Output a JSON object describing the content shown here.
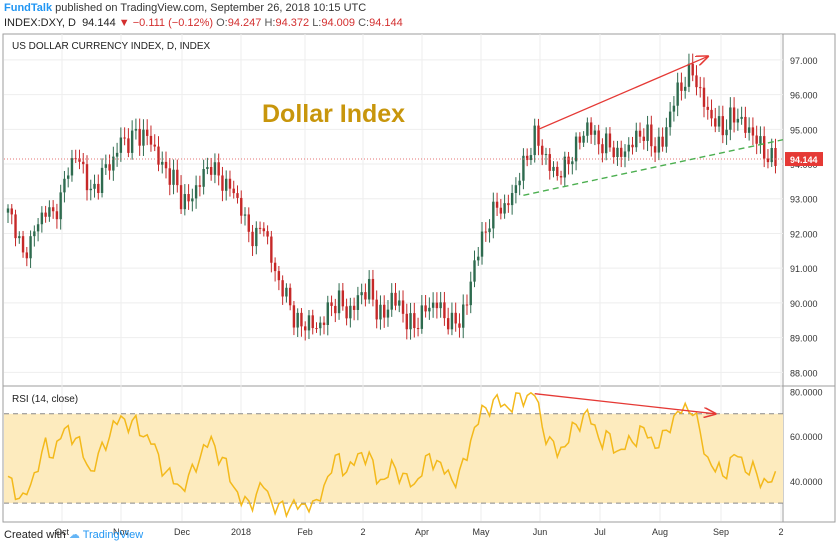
{
  "header": {
    "publisher": "FundTalk",
    "published_text": "published on TradingView.com, September 26, 2018 10:15 UTC",
    "symbol": "INDEX:DXY, D",
    "last": "94.144",
    "change": "−0.111 (−0.12%)",
    "o_label": "O:",
    "o_value": "94.247",
    "h_label": "H:",
    "h_value": "94.372",
    "l_label": "L:",
    "l_value": "94.009",
    "c_label": "C:",
    "c_value": "94.144"
  },
  "footer": {
    "created_with": "Created with",
    "brand": "TradingView"
  },
  "colors": {
    "up": "#2e6b4f",
    "down": "#c62828",
    "rsi_line": "#f3b91b",
    "rsi_band": "#fdebbe",
    "annotation": "#e53935",
    "trendline": "#4caf50",
    "title": "#c8960c"
  },
  "chart_data": [
    {
      "type": "candlestick",
      "title": "US DOLLAR CURRENCY INDEX, D, INDEX",
      "annotation_title": "Dollar Index",
      "last_price_label": "94.144",
      "y_ticks": [
        "88.000",
        "89.000",
        "90.000",
        "91.000",
        "92.000",
        "93.000",
        "94.000",
        "95.000",
        "96.000",
        "97.000"
      ],
      "ylim": [
        87.75,
        97.4
      ],
      "x_ticks": [
        "Oct",
        "Nov",
        "Dec",
        "2018",
        "Feb",
        "2",
        "Apr",
        "May",
        "Jun",
        "Jul",
        "Aug",
        "Sep",
        "2"
      ],
      "grid": true,
      "close_path": [
        [
          0,
          92.6
        ],
        [
          2,
          92.2
        ],
        [
          4,
          91.3
        ],
        [
          6,
          91.8
        ],
        [
          8,
          92.3
        ],
        [
          10,
          92.7
        ],
        [
          12,
          92.5
        ],
        [
          14,
          93.0
        ],
        [
          16,
          93.9
        ],
        [
          18,
          94.2
        ],
        [
          20,
          93.9
        ],
        [
          22,
          93.1
        ],
        [
          24,
          93.5
        ],
        [
          26,
          93.9
        ],
        [
          28,
          94.1
        ],
        [
          30,
          94.7
        ],
        [
          32,
          94.6
        ],
        [
          34,
          94.9
        ],
        [
          36,
          94.8
        ],
        [
          38,
          94.7
        ],
        [
          40,
          94.1
        ],
        [
          42,
          93.8
        ],
        [
          44,
          93.6
        ],
        [
          46,
          93.0
        ],
        [
          48,
          92.9
        ],
        [
          50,
          93.3
        ],
        [
          52,
          93.7
        ],
        [
          54,
          94.0
        ],
        [
          56,
          93.6
        ],
        [
          58,
          93.4
        ],
        [
          60,
          93.2
        ],
        [
          62,
          92.7
        ],
        [
          64,
          92.0
        ],
        [
          66,
          91.9
        ],
        [
          68,
          92.3
        ],
        [
          70,
          91.2
        ],
        [
          72,
          90.6
        ],
        [
          74,
          90.2
        ],
        [
          76,
          89.6
        ],
        [
          78,
          89.3
        ],
        [
          80,
          89.5
        ],
        [
          82,
          89.2
        ],
        [
          84,
          89.6
        ],
        [
          86,
          89.9
        ],
        [
          88,
          90.1
        ],
        [
          90,
          89.7
        ],
        [
          92,
          89.9
        ],
        [
          94,
          90.3
        ],
        [
          96,
          90.4
        ],
        [
          98,
          89.8
        ],
        [
          100,
          89.6
        ],
        [
          102,
          90.2
        ],
        [
          104,
          89.9
        ],
        [
          106,
          89.5
        ],
        [
          108,
          89.3
        ],
        [
          110,
          89.7
        ],
        [
          112,
          89.9
        ],
        [
          114,
          90.0
        ],
        [
          116,
          89.6
        ],
        [
          118,
          89.4
        ],
        [
          120,
          89.5
        ],
        [
          122,
          90.0
        ],
        [
          124,
          91.2
        ],
        [
          126,
          91.8
        ],
        [
          128,
          92.4
        ],
        [
          130,
          92.8
        ],
        [
          132,
          92.7
        ],
        [
          134,
          93.1
        ],
        [
          136,
          93.7
        ],
        [
          138,
          94.2
        ],
        [
          140,
          94.8
        ],
        [
          142,
          94.4
        ],
        [
          144,
          93.9
        ],
        [
          146,
          93.7
        ],
        [
          148,
          93.9
        ],
        [
          150,
          94.3
        ],
        [
          152,
          94.7
        ],
        [
          154,
          95.1
        ],
        [
          156,
          94.8
        ],
        [
          158,
          94.5
        ],
        [
          160,
          94.6
        ],
        [
          162,
          94.2
        ],
        [
          164,
          94.4
        ],
        [
          166,
          94.6
        ],
        [
          168,
          94.9
        ],
        [
          170,
          94.8
        ],
        [
          172,
          94.5
        ],
        [
          174,
          94.6
        ],
        [
          176,
          95.5
        ],
        [
          178,
          96.1
        ],
        [
          180,
          96.4
        ],
        [
          182,
          96.7
        ],
        [
          184,
          96.0
        ],
        [
          186,
          95.5
        ],
        [
          188,
          95.2
        ],
        [
          190,
          95.0
        ],
        [
          192,
          95.3
        ],
        [
          194,
          95.4
        ],
        [
          196,
          95.0
        ],
        [
          198,
          94.9
        ],
        [
          200,
          94.5
        ],
        [
          202,
          94.2
        ],
        [
          204,
          94.1
        ]
      ],
      "annotations": [
        {
          "type": "arrow",
          "color": "red",
          "from": [
            141,
            95.0
          ],
          "to": [
            186,
            97.1
          ]
        },
        {
          "type": "dashed_trendline",
          "color": "green",
          "from": [
            137,
            93.1
          ],
          "to": [
            206,
            94.7
          ]
        },
        {
          "type": "horizontal_dotted",
          "value": 94.144
        }
      ]
    },
    {
      "type": "line",
      "title": "RSI (14, close)",
      "y_ticks": [
        "40.0000",
        "60.0000",
        "80.0000"
      ],
      "ylim": [
        22,
        82
      ],
      "bands": [
        30,
        70
      ],
      "values": [
        [
          0,
          40
        ],
        [
          2,
          36
        ],
        [
          4,
          31
        ],
        [
          6,
          38
        ],
        [
          8,
          48
        ],
        [
          10,
          55
        ],
        [
          12,
          52
        ],
        [
          14,
          60
        ],
        [
          16,
          63
        ],
        [
          18,
          59
        ],
        [
          20,
          52
        ],
        [
          22,
          44
        ],
        [
          24,
          50
        ],
        [
          26,
          58
        ],
        [
          28,
          64
        ],
        [
          30,
          68
        ],
        [
          32,
          66
        ],
        [
          34,
          65
        ],
        [
          36,
          61
        ],
        [
          38,
          58
        ],
        [
          40,
          50
        ],
        [
          42,
          44
        ],
        [
          44,
          40
        ],
        [
          46,
          37
        ],
        [
          48,
          40
        ],
        [
          50,
          48
        ],
        [
          52,
          54
        ],
        [
          54,
          58
        ],
        [
          56,
          52
        ],
        [
          58,
          46
        ],
        [
          60,
          38
        ],
        [
          62,
          31
        ],
        [
          64,
          29
        ],
        [
          66,
          34
        ],
        [
          68,
          38
        ],
        [
          70,
          31
        ],
        [
          72,
          27
        ],
        [
          74,
          28
        ],
        [
          76,
          30
        ],
        [
          78,
          27
        ],
        [
          80,
          31
        ],
        [
          82,
          28
        ],
        [
          84,
          38
        ],
        [
          86,
          46
        ],
        [
          88,
          50
        ],
        [
          90,
          44
        ],
        [
          92,
          48
        ],
        [
          94,
          53
        ],
        [
          96,
          50
        ],
        [
          98,
          42
        ],
        [
          100,
          40
        ],
        [
          102,
          46
        ],
        [
          104,
          44
        ],
        [
          106,
          40
        ],
        [
          108,
          38
        ],
        [
          110,
          45
        ],
        [
          112,
          50
        ],
        [
          114,
          49
        ],
        [
          116,
          44
        ],
        [
          118,
          41
        ],
        [
          120,
          42
        ],
        [
          122,
          52
        ],
        [
          124,
          64
        ],
        [
          126,
          70
        ],
        [
          128,
          74
        ],
        [
          130,
          76
        ],
        [
          132,
          73
        ],
        [
          134,
          74
        ],
        [
          136,
          77
        ],
        [
          138,
          78
        ],
        [
          140,
          79
        ],
        [
          142,
          65
        ],
        [
          144,
          57
        ],
        [
          146,
          53
        ],
        [
          148,
          56
        ],
        [
          150,
          62
        ],
        [
          152,
          67
        ],
        [
          154,
          70
        ],
        [
          156,
          63
        ],
        [
          158,
          58
        ],
        [
          160,
          59
        ],
        [
          162,
          53
        ],
        [
          164,
          55
        ],
        [
          166,
          58
        ],
        [
          168,
          62
        ],
        [
          170,
          61
        ],
        [
          172,
          56
        ],
        [
          174,
          58
        ],
        [
          176,
          66
        ],
        [
          178,
          70
        ],
        [
          180,
          72
        ],
        [
          182,
          73
        ],
        [
          184,
          60
        ],
        [
          186,
          50
        ],
        [
          188,
          45
        ],
        [
          190,
          43
        ],
        [
          192,
          48
        ],
        [
          194,
          52
        ],
        [
          196,
          46
        ],
        [
          198,
          44
        ],
        [
          200,
          41
        ],
        [
          202,
          39
        ],
        [
          204,
          41
        ]
      ],
      "annotations": [
        {
          "type": "arrow",
          "color": "red",
          "from": [
            140,
            79
          ],
          "to": [
            188,
            70
          ]
        }
      ]
    }
  ]
}
